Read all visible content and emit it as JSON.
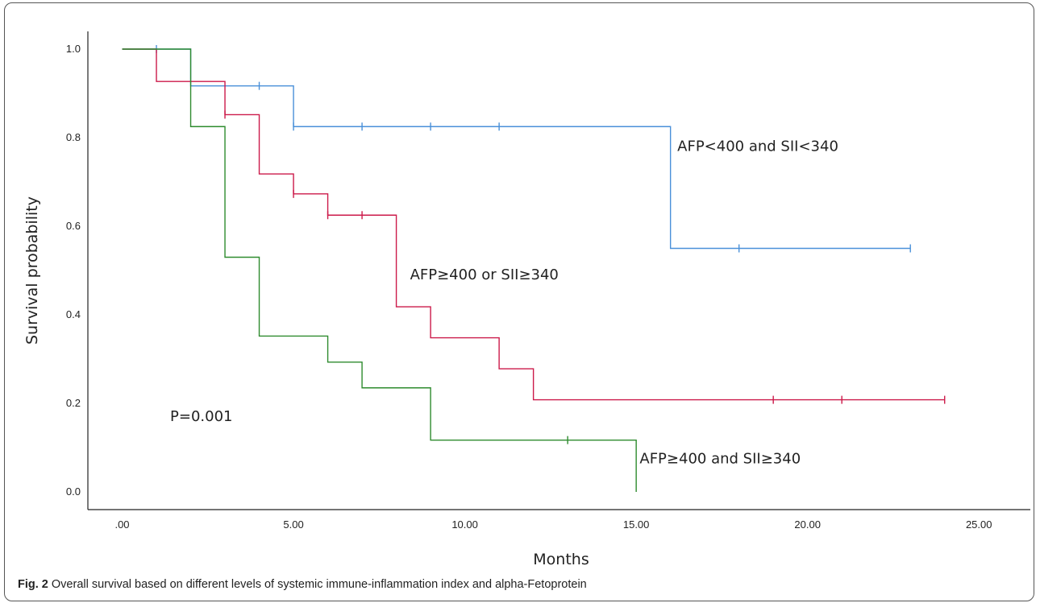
{
  "caption": {
    "label": "Fig. 2",
    "text": "Overall survival based on different levels of systemic immune-inflammation index and alpha-Fetoprotein"
  },
  "chart_data": {
    "type": "line",
    "step": true,
    "xlabel": "Months",
    "ylabel": "Survival probability",
    "xlim": [
      -1,
      26.5
    ],
    "ylim": [
      -0.04,
      1.04
    ],
    "xticks": [
      0,
      5,
      10,
      15,
      20,
      25
    ],
    "xtick_labels": [
      ".00",
      "5.00",
      "10.00",
      "15.00",
      "20.00",
      "25.00"
    ],
    "yticks": [
      0,
      0.2,
      0.4,
      0.6,
      0.8,
      1.0
    ],
    "ytick_labels": [
      "0.0",
      "0.2",
      "0.4",
      "0.6",
      "0.8",
      "1.0"
    ],
    "grid": false,
    "annotations": [
      {
        "text": "P=0.001",
        "x": 1.4,
        "y": 0.16
      },
      {
        "text": "AFP<400 and SII<340",
        "x": 16.2,
        "y": 0.77
      },
      {
        "text": "AFP≥400 or SII≥340",
        "x": 8.4,
        "y": 0.48
      },
      {
        "text": "AFP≥400 and SII≥340",
        "x": 15.1,
        "y": 0.065
      }
    ],
    "series": [
      {
        "color": "#4a90d9",
        "x": [
          0,
          2,
          5,
          16,
          23
        ],
        "y": [
          1.0,
          0.917,
          0.825,
          0.55,
          0.55
        ],
        "censored": [
          [
            1,
            1.0
          ],
          [
            4,
            0.917
          ],
          [
            5,
            0.825
          ],
          [
            7,
            0.825
          ],
          [
            9,
            0.825
          ],
          [
            11,
            0.825
          ],
          [
            18,
            0.55
          ],
          [
            23,
            0.55
          ]
        ]
      },
      {
        "color": "#cc1a4a",
        "x": [
          0,
          1,
          3,
          4,
          5,
          6,
          8,
          9,
          11,
          12,
          24
        ],
        "y": [
          1.0,
          0.927,
          0.852,
          0.718,
          0.673,
          0.625,
          0.418,
          0.348,
          0.278,
          0.208,
          0.208
        ],
        "censored": [
          [
            3,
            0.852
          ],
          [
            5,
            0.673
          ],
          [
            6,
            0.625
          ],
          [
            7,
            0.625
          ],
          [
            19,
            0.208
          ],
          [
            21,
            0.208
          ],
          [
            24,
            0.208
          ]
        ]
      },
      {
        "color": "#2e8b2e",
        "x": [
          0,
          2,
          3,
          4,
          6,
          7,
          9,
          15
        ],
        "y": [
          1.0,
          0.825,
          0.53,
          0.352,
          0.293,
          0.235,
          0.117,
          0.0
        ],
        "censored": [
          [
            13,
            0.117
          ]
        ]
      }
    ]
  }
}
